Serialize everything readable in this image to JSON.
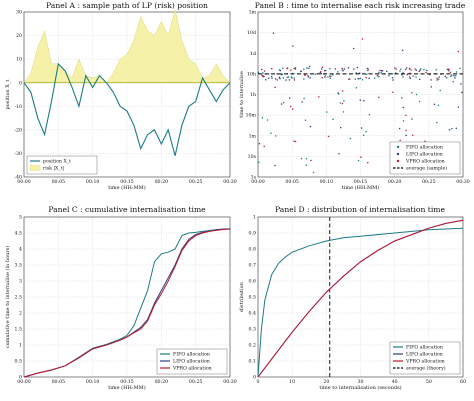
{
  "palette": {
    "teal": "#1b7b86",
    "red": "#c0182d",
    "navy": "#2c3e80",
    "yellow": "#f6f1a9",
    "yellow_edge": "#d8cf60",
    "green": "#9aa819",
    "grid": "#d7d7d7",
    "axis": "#333333"
  },
  "chart_data": [
    {
      "panel": "A",
      "type": "line",
      "title": "Panel A : sample path of LP (risk) position",
      "xlabel": "time (HH:MM)",
      "ylabel": "position X_t",
      "xlim": [
        0,
        30
      ],
      "ylim": [
        -40,
        30
      ],
      "x_ticks": [
        "00:00",
        "00:05",
        "00:10",
        "00:15",
        "00:20",
        "00:25",
        "00:30"
      ],
      "y_ticks": [
        "-40",
        "-30",
        "-20",
        "-10",
        "0",
        "10",
        "20",
        "30"
      ],
      "grid": true,
      "legend_position": "bottom-left",
      "series": [
        {
          "name": "position X_t",
          "color": "teal",
          "x": [
            0,
            1,
            2,
            3,
            4,
            5,
            6,
            7,
            8,
            9,
            10,
            11,
            12,
            13,
            14,
            15,
            16,
            17,
            18,
            19,
            20,
            21,
            22,
            23,
            24,
            25,
            26,
            27,
            28,
            29,
            30
          ],
          "values": [
            0,
            -4,
            -15,
            -22,
            -8,
            8,
            5,
            -2,
            -10,
            3,
            -2,
            3,
            0,
            -4,
            -10,
            -12,
            -18,
            -28,
            -22,
            -20,
            -26,
            -20,
            -31,
            -18,
            -10,
            -8,
            2,
            -3,
            -8,
            -3,
            0
          ]
        },
        {
          "name": "risk |X_t|",
          "color": "yellow",
          "x": [
            0,
            1,
            2,
            3,
            4,
            5,
            6,
            7,
            8,
            9,
            10,
            11,
            12,
            13,
            14,
            15,
            16,
            17,
            18,
            19,
            20,
            21,
            22,
            23,
            24,
            25,
            26,
            27,
            28,
            29,
            30
          ],
          "values": [
            0,
            4,
            15,
            22,
            8,
            8,
            5,
            2,
            10,
            3,
            2,
            3,
            0,
            4,
            10,
            12,
            18,
            28,
            22,
            20,
            26,
            20,
            31,
            18,
            10,
            8,
            2,
            3,
            8,
            3,
            0
          ]
        }
      ]
    },
    {
      "panel": "B",
      "type": "scatter",
      "title": "Panel B : time to internalise each risk increasing trade",
      "xlabel": "time (HH:MM)",
      "ylabel": "time to internalise",
      "xlim": [
        0,
        30
      ],
      "y_scale": "log",
      "x_ticks": [
        "00:00",
        "00:05",
        "00:10",
        "00:15",
        "00:20",
        "00:25",
        "00:30"
      ],
      "y_ticks": [
        "1s",
        "10s",
        "1m",
        "10m",
        "1h",
        "10h",
        "1d",
        "10d",
        "1m"
      ],
      "grid": true,
      "legend_position": "bottom-right",
      "reference_line": {
        "name": "average (sample)",
        "level_tick": "10h"
      },
      "series": [
        {
          "name": "FIFO allocation",
          "color": "teal"
        },
        {
          "name": "LIFO allocation",
          "color": "navy"
        },
        {
          "name": "VPRO allocation",
          "color": "red"
        }
      ]
    },
    {
      "panel": "C",
      "type": "line",
      "title": "Panel C : cumulative internalisation time",
      "xlabel": "time (HH:MM)",
      "ylabel": "cumulative time to internalise (in hours)",
      "xlim": [
        0,
        30
      ],
      "ylim": [
        0,
        5
      ],
      "x_ticks": [
        "00:00",
        "00:05",
        "00:10",
        "00:15",
        "00:20",
        "00:25",
        "00:30"
      ],
      "y_ticks": [
        "0",
        "0.5",
        "1",
        "1.5",
        "2",
        "2.5",
        "3",
        "3.5",
        "4",
        "4.5",
        "5"
      ],
      "grid": true,
      "legend_position": "bottom-right",
      "series": [
        {
          "name": "FIFO allocation",
          "color": "teal",
          "x": [
            0,
            2,
            4,
            6,
            8,
            10,
            12,
            14,
            15,
            16,
            17,
            18,
            19,
            20,
            21,
            22,
            23,
            24,
            25,
            26,
            27,
            28,
            29,
            30
          ],
          "values": [
            0,
            0.12,
            0.22,
            0.35,
            0.62,
            0.9,
            1.02,
            1.18,
            1.3,
            1.6,
            2.15,
            2.7,
            3.6,
            3.85,
            3.9,
            4.0,
            4.42,
            4.5,
            4.52,
            4.55,
            4.58,
            4.6,
            4.62,
            4.63
          ]
        },
        {
          "name": "LIFO allocation",
          "color": "navy",
          "x": [
            0,
            2,
            4,
            6,
            8,
            10,
            12,
            14,
            15,
            16,
            17,
            18,
            19,
            20,
            21,
            22,
            23,
            24,
            25,
            26,
            27,
            28,
            29,
            30
          ],
          "values": [
            0,
            0.12,
            0.22,
            0.35,
            0.6,
            0.88,
            1.0,
            1.15,
            1.25,
            1.4,
            1.55,
            1.8,
            2.3,
            2.7,
            3.1,
            3.5,
            4.0,
            4.3,
            4.45,
            4.52,
            4.56,
            4.6,
            4.62,
            4.63
          ]
        },
        {
          "name": "VPRO allocation",
          "color": "red",
          "x": [
            0,
            2,
            4,
            6,
            8,
            10,
            12,
            14,
            15,
            16,
            17,
            18,
            19,
            20,
            21,
            22,
            23,
            24,
            25,
            26,
            27,
            28,
            29,
            30
          ],
          "values": [
            0,
            0.12,
            0.22,
            0.35,
            0.6,
            0.88,
            1.0,
            1.15,
            1.25,
            1.38,
            1.5,
            1.75,
            2.25,
            2.6,
            3.0,
            3.45,
            3.95,
            4.25,
            4.42,
            4.5,
            4.55,
            4.58,
            4.61,
            4.62
          ]
        }
      ]
    },
    {
      "panel": "D",
      "type": "line",
      "title": "Panel D : distribution of internalisation time",
      "xlabel": "time to internalisation (seconds)",
      "ylabel": "distribution",
      "xlim": [
        0,
        60
      ],
      "ylim": [
        0,
        1
      ],
      "x_ticks": [
        "0",
        "10",
        "20",
        "30",
        "40",
        "50",
        "60"
      ],
      "y_ticks": [
        "0",
        "0.1",
        "0.2",
        "0.3",
        "0.4",
        "0.5",
        "0.6",
        "0.7",
        "0.8",
        "0.9",
        "1"
      ],
      "grid": true,
      "legend_position": "bottom-right",
      "reference_line": {
        "name": "average (theory)",
        "x": 21
      },
      "series": [
        {
          "name": "FIFO allocation",
          "color": "teal",
          "x": [
            0,
            1,
            2,
            4,
            6,
            8,
            10,
            15,
            20,
            25,
            30,
            40,
            50,
            60
          ],
          "values": [
            0,
            0.3,
            0.48,
            0.64,
            0.71,
            0.75,
            0.78,
            0.82,
            0.85,
            0.87,
            0.88,
            0.9,
            0.92,
            0.93
          ]
        },
        {
          "name": "LIFO allocation",
          "color": "navy",
          "x": [
            0,
            5,
            10,
            15,
            20,
            25,
            30,
            35,
            40,
            45,
            50,
            55,
            60
          ],
          "values": [
            0,
            0.14,
            0.28,
            0.41,
            0.53,
            0.63,
            0.72,
            0.79,
            0.85,
            0.89,
            0.93,
            0.96,
            0.98
          ]
        },
        {
          "name": "VPRO allocation",
          "color": "red",
          "x": [
            0,
            5,
            10,
            15,
            20,
            25,
            30,
            35,
            40,
            45,
            50,
            55,
            60
          ],
          "values": [
            0,
            0.14,
            0.28,
            0.41,
            0.53,
            0.63,
            0.72,
            0.79,
            0.85,
            0.89,
            0.93,
            0.96,
            0.98
          ]
        }
      ]
    }
  ]
}
